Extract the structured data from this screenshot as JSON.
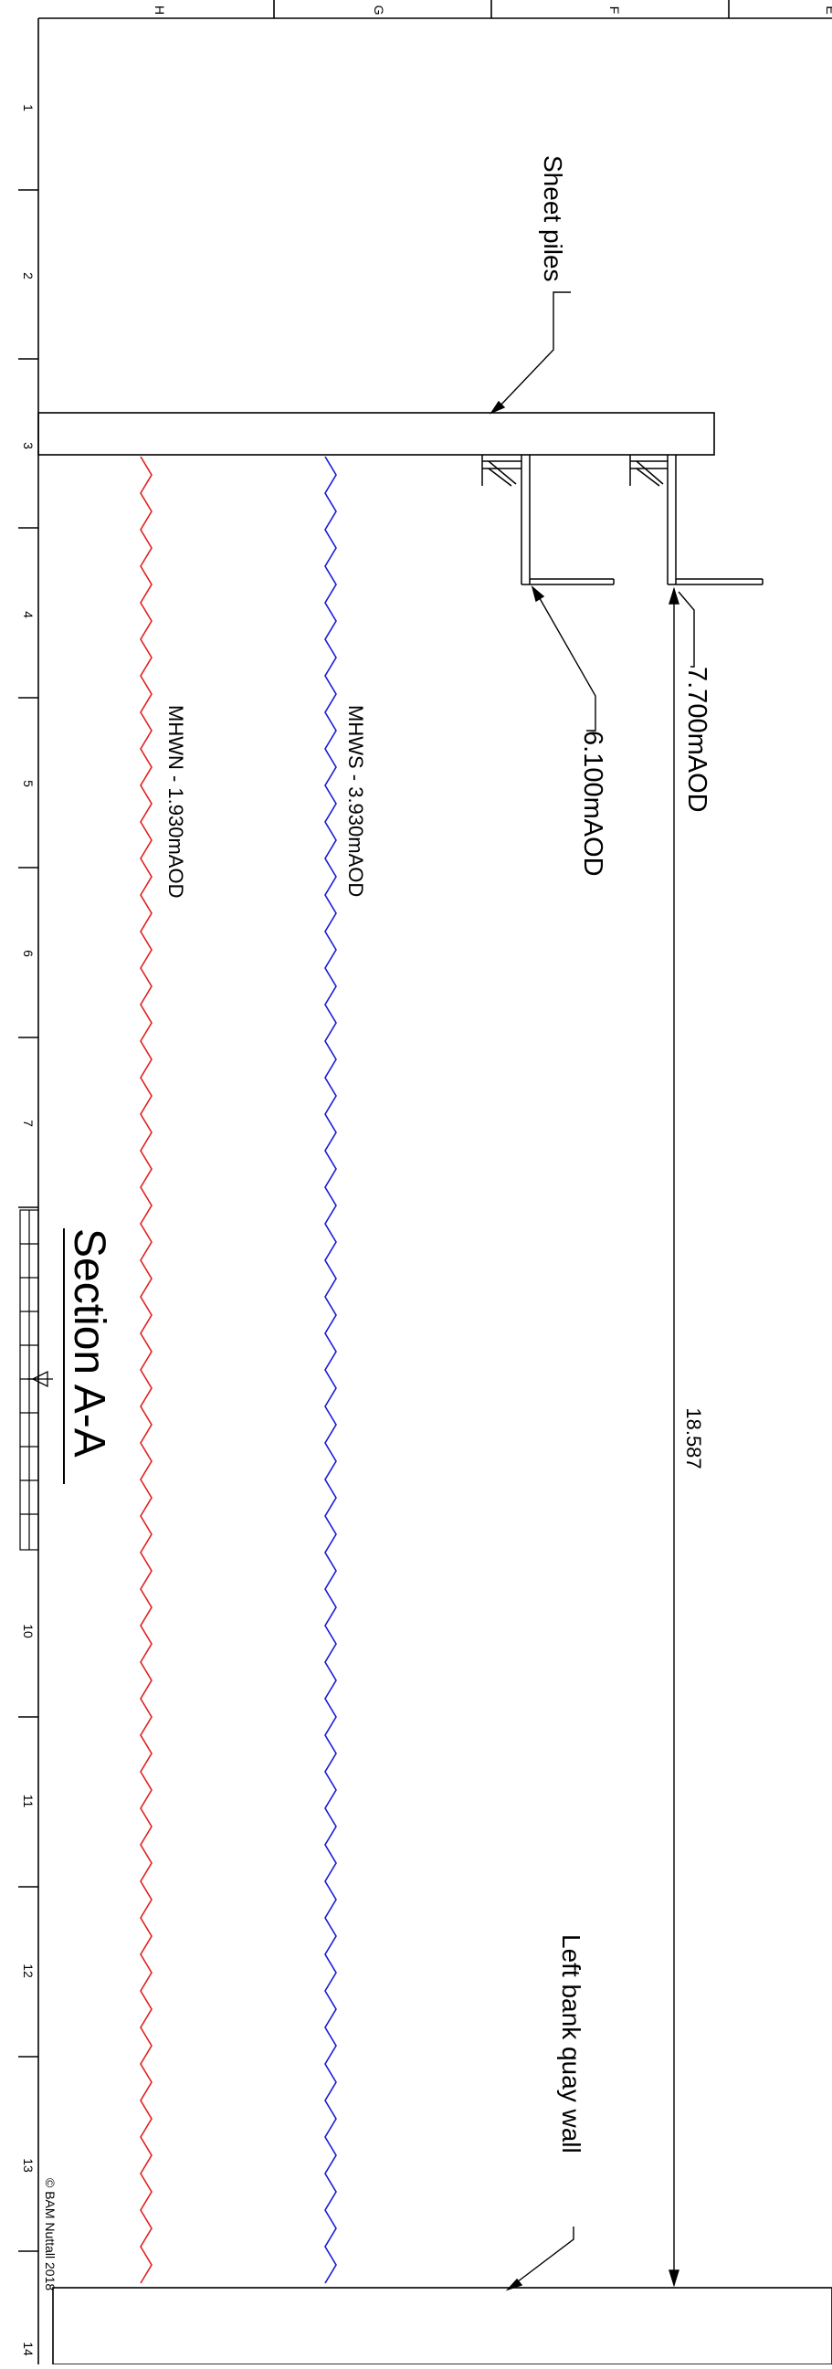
{
  "border_letters": [
    "H",
    "G",
    "F",
    "E"
  ],
  "border_numbers": [
    "1",
    "2",
    "3",
    "4",
    "5",
    "6",
    "7",
    "10",
    "11",
    "12",
    "13",
    "14"
  ],
  "labels": {
    "sheet_piles": "Sheet piles",
    "level_upper": "7.700mAOD",
    "level_lower": "6.100mAOD",
    "mhws": "MHWS - 3.930mAOD",
    "mhwn": "MHWN - 1.930mAOD",
    "dimension": "18.587",
    "left_bank": "Left bank quay wall",
    "section_title": "Section A-A",
    "copyright": "© BAM Nuttall 2018"
  },
  "colors": {
    "line": "#000000",
    "mhws_line": "#1a1ad8",
    "mhwn_line": "#e02020"
  }
}
